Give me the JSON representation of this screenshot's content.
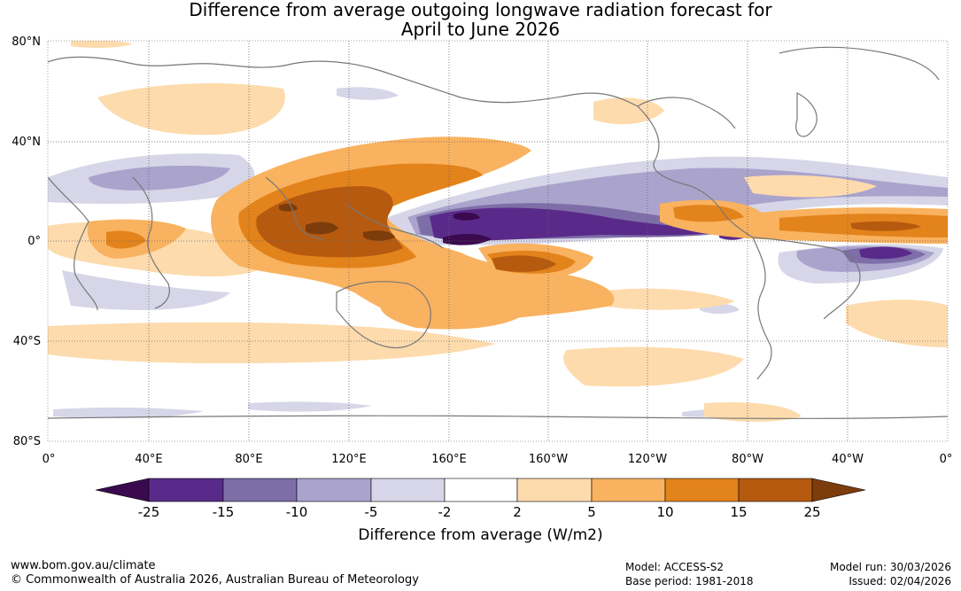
{
  "title": {
    "line1": "Difference from average outgoing longwave radiation forecast for",
    "line2": "April to June 2026"
  },
  "map": {
    "lat_labels": [
      "80°N",
      "40°N",
      "0°",
      "40°S",
      "80°S"
    ],
    "lon_labels": [
      "0°",
      "40°E",
      "80°E",
      "120°E",
      "160°E",
      "160°W",
      "120°W",
      "80°W",
      "40°W",
      "0°"
    ],
    "colors": {
      "neg25": "#3b0a4e",
      "neg15": "#5a2a8a",
      "neg10": "#7e6ea8",
      "neg5": "#aaa3cc",
      "neg2": "#d6d6e8",
      "pos2": "#ffffff",
      "pos5": "#fddbad",
      "pos10": "#f9b25f",
      "pos15": "#e3831b",
      "pos25": "#b65a10",
      "posmax": "#7d3c0b",
      "coast": "#777777",
      "grid": "#666666"
    }
  },
  "colorbar": {
    "ticks": [
      "-25",
      "-15",
      "-10",
      "-5",
      "-2",
      "2",
      "5",
      "10",
      "15",
      "25"
    ],
    "title": "Difference from average (W/m2)"
  },
  "footer": {
    "url": "www.bom.gov.au/climate",
    "copyright": "© Commonwealth of Australia 2026, Australian Bureau of Meteorology",
    "model": "Model: ACCESS-S2",
    "base_period": "Base period: 1981-2018",
    "model_run": "Model run: 30/03/2026",
    "issued": "Issued: 02/04/2026"
  }
}
